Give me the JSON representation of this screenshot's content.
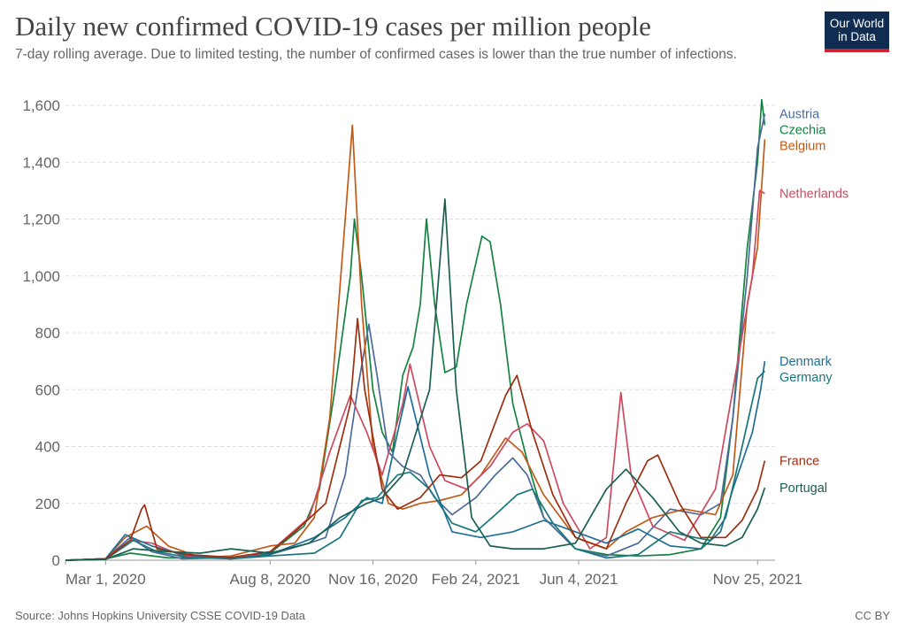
{
  "header": {
    "title": "Daily new confirmed COVID-19 cases per million people",
    "subtitle": "7-day rolling average. Due to limited testing, the number of confirmed cases is lower than the true number of infections."
  },
  "logo": {
    "line1": "Our World",
    "line2": "in Data",
    "bg": "#102c50",
    "accent": "#cf2430"
  },
  "footer": {
    "source": "Source: Johns Hopkins University CSSE COVID-19 Data",
    "license": "CC BY"
  },
  "chart_data": {
    "type": "line",
    "title": "Daily new confirmed COVID-19 cases per million people",
    "ylim": [
      0,
      1600
    ],
    "yticks": [
      0,
      200,
      400,
      600,
      800,
      1000,
      1200,
      1400,
      1600
    ],
    "ytick_labels": [
      "0",
      "200",
      "400",
      "600",
      "800",
      "1,000",
      "1,200",
      "1,400",
      "1,600"
    ],
    "xlim": [
      "2020-01-22",
      "2021-12-12"
    ],
    "xticks": [
      "2020-03-01",
      "2020-08-08",
      "2020-11-16",
      "2021-02-24",
      "2021-06-04",
      "2021-11-25"
    ],
    "xtick_labels": [
      "Mar 1, 2020",
      "Aug 8, 2020",
      "Nov 16, 2020",
      "Feb 24, 2021",
      "Jun 4, 2021",
      "Nov 25, 2021"
    ],
    "grid": "horizontal dashed",
    "legend": "right, at line ends",
    "series": [
      {
        "name": "Czechia",
        "color": "#158340",
        "points": [
          [
            "2020-01-22",
            0
          ],
          [
            "2020-03-01",
            5
          ],
          [
            "2020-03-25",
            25
          ],
          [
            "2020-05-01",
            8
          ],
          [
            "2020-07-01",
            10
          ],
          [
            "2020-08-08",
            25
          ],
          [
            "2020-09-10",
            120
          ],
          [
            "2020-09-25",
            250
          ],
          [
            "2020-10-10",
            600
          ],
          [
            "2020-10-25",
            1000
          ],
          [
            "2020-10-29",
            1200
          ],
          [
            "2020-11-05",
            1000
          ],
          [
            "2020-11-16",
            600
          ],
          [
            "2020-11-25",
            450
          ],
          [
            "2020-12-05",
            380
          ],
          [
            "2020-12-15",
            650
          ],
          [
            "2020-12-25",
            750
          ],
          [
            "2021-01-01",
            900
          ],
          [
            "2021-01-07",
            1200
          ],
          [
            "2021-01-15",
            900
          ],
          [
            "2021-01-25",
            660
          ],
          [
            "2021-02-05",
            680
          ],
          [
            "2021-02-15",
            900
          ],
          [
            "2021-03-02",
            1140
          ],
          [
            "2021-03-10",
            1120
          ],
          [
            "2021-03-20",
            900
          ],
          [
            "2021-04-01",
            550
          ],
          [
            "2021-04-15",
            350
          ],
          [
            "2021-05-01",
            150
          ],
          [
            "2021-06-01",
            40
          ],
          [
            "2021-07-01",
            20
          ],
          [
            "2021-08-01",
            15
          ],
          [
            "2021-09-01",
            20
          ],
          [
            "2021-10-01",
            40
          ],
          [
            "2021-10-20",
            150
          ],
          [
            "2021-11-01",
            500
          ],
          [
            "2021-11-15",
            1100
          ],
          [
            "2021-11-25",
            1400
          ],
          [
            "2021-11-29",
            1620
          ],
          [
            "2021-12-02",
            1530
          ]
        ]
      },
      {
        "name": "Austria",
        "color": "#4c6a9c",
        "points": [
          [
            "2020-01-22",
            0
          ],
          [
            "2020-03-01",
            5
          ],
          [
            "2020-03-25",
            80
          ],
          [
            "2020-04-15",
            30
          ],
          [
            "2020-05-15",
            5
          ],
          [
            "2020-07-01",
            10
          ],
          [
            "2020-08-08",
            20
          ],
          [
            "2020-09-15",
            60
          ],
          [
            "2020-10-01",
            80
          ],
          [
            "2020-10-20",
            300
          ],
          [
            "2020-11-01",
            600
          ],
          [
            "2020-11-12",
            830
          ],
          [
            "2020-11-20",
            650
          ],
          [
            "2020-12-01",
            380
          ],
          [
            "2020-12-15",
            330
          ],
          [
            "2021-01-01",
            300
          ],
          [
            "2021-01-15",
            220
          ],
          [
            "2021-02-01",
            160
          ],
          [
            "2021-02-24",
            220
          ],
          [
            "2021-03-15",
            300
          ],
          [
            "2021-04-01",
            360
          ],
          [
            "2021-04-15",
            300
          ],
          [
            "2021-05-01",
            150
          ],
          [
            "2021-06-01",
            40
          ],
          [
            "2021-07-01",
            15
          ],
          [
            "2021-08-01",
            60
          ],
          [
            "2021-09-01",
            180
          ],
          [
            "2021-10-01",
            160
          ],
          [
            "2021-10-20",
            200
          ],
          [
            "2021-11-01",
            500
          ],
          [
            "2021-11-15",
            1000
          ],
          [
            "2021-11-25",
            1450
          ],
          [
            "2021-12-02",
            1570
          ]
        ]
      },
      {
        "name": "Belgium",
        "color": "#c15a16",
        "points": [
          [
            "2020-01-22",
            0
          ],
          [
            "2020-03-01",
            5
          ],
          [
            "2020-03-20",
            80
          ],
          [
            "2020-04-10",
            120
          ],
          [
            "2020-05-01",
            50
          ],
          [
            "2020-06-01",
            10
          ],
          [
            "2020-07-01",
            15
          ],
          [
            "2020-08-08",
            50
          ],
          [
            "2020-09-01",
            60
          ],
          [
            "2020-09-20",
            150
          ],
          [
            "2020-10-05",
            500
          ],
          [
            "2020-10-20",
            1200
          ],
          [
            "2020-10-27",
            1530
          ],
          [
            "2020-11-05",
            900
          ],
          [
            "2020-11-16",
            400
          ],
          [
            "2020-12-01",
            200
          ],
          [
            "2020-12-15",
            180
          ],
          [
            "2021-01-01",
            200
          ],
          [
            "2021-01-20",
            210
          ],
          [
            "2021-02-10",
            230
          ],
          [
            "2021-03-01",
            300
          ],
          [
            "2021-03-25",
            430
          ],
          [
            "2021-04-10",
            380
          ],
          [
            "2021-05-01",
            230
          ],
          [
            "2021-06-01",
            80
          ],
          [
            "2021-07-01",
            40
          ],
          [
            "2021-07-20",
            100
          ],
          [
            "2021-08-15",
            150
          ],
          [
            "2021-09-15",
            180
          ],
          [
            "2021-10-15",
            160
          ],
          [
            "2021-11-01",
            300
          ],
          [
            "2021-11-15",
            900
          ],
          [
            "2021-11-25",
            1100
          ],
          [
            "2021-12-02",
            1480
          ]
        ]
      },
      {
        "name": "Netherlands",
        "color": "#cd4b61",
        "points": [
          [
            "2020-01-22",
            0
          ],
          [
            "2020-03-01",
            3
          ],
          [
            "2020-03-25",
            70
          ],
          [
            "2020-04-15",
            60
          ],
          [
            "2020-05-15",
            15
          ],
          [
            "2020-07-01",
            5
          ],
          [
            "2020-08-08",
            30
          ],
          [
            "2020-09-15",
            150
          ],
          [
            "2020-10-05",
            380
          ],
          [
            "2020-10-25",
            580
          ],
          [
            "2020-11-10",
            450
          ],
          [
            "2020-11-25",
            300
          ],
          [
            "2020-12-15",
            550
          ],
          [
            "2020-12-22",
            690
          ],
          [
            "2021-01-10",
            400
          ],
          [
            "2021-01-25",
            280
          ],
          [
            "2021-02-15",
            250
          ],
          [
            "2021-03-10",
            330
          ],
          [
            "2021-04-01",
            450
          ],
          [
            "2021-04-15",
            480
          ],
          [
            "2021-05-01",
            420
          ],
          [
            "2021-05-20",
            200
          ],
          [
            "2021-06-15",
            40
          ],
          [
            "2021-07-01",
            80
          ],
          [
            "2021-07-15",
            590
          ],
          [
            "2021-07-25",
            300
          ],
          [
            "2021-08-15",
            120
          ],
          [
            "2021-09-15",
            70
          ],
          [
            "2021-10-15",
            250
          ],
          [
            "2021-11-01",
            600
          ],
          [
            "2021-11-20",
            1000
          ],
          [
            "2021-11-27",
            1300
          ],
          [
            "2021-12-02",
            1290
          ]
        ]
      },
      {
        "name": "Denmark",
        "color": "#1f6e95",
        "points": [
          [
            "2020-01-22",
            0
          ],
          [
            "2020-03-01",
            5
          ],
          [
            "2020-03-20",
            90
          ],
          [
            "2020-04-15",
            50
          ],
          [
            "2020-05-15",
            20
          ],
          [
            "2020-07-01",
            5
          ],
          [
            "2020-08-08",
            20
          ],
          [
            "2020-09-20",
            80
          ],
          [
            "2020-10-20",
            150
          ],
          [
            "2020-11-10",
            220
          ],
          [
            "2020-11-25",
            200
          ],
          [
            "2020-12-10",
            450
          ],
          [
            "2020-12-20",
            610
          ],
          [
            "2021-01-10",
            300
          ],
          [
            "2021-02-01",
            100
          ],
          [
            "2021-03-01",
            80
          ],
          [
            "2021-04-01",
            100
          ],
          [
            "2021-05-01",
            140
          ],
          [
            "2021-06-01",
            100
          ],
          [
            "2021-07-01",
            60
          ],
          [
            "2021-08-01",
            110
          ],
          [
            "2021-09-01",
            50
          ],
          [
            "2021-10-01",
            40
          ],
          [
            "2021-10-20",
            100
          ],
          [
            "2021-11-01",
            250
          ],
          [
            "2021-11-20",
            450
          ],
          [
            "2021-11-28",
            600
          ],
          [
            "2021-12-02",
            700
          ]
        ]
      },
      {
        "name": "Germany",
        "color": "#18777b",
        "points": [
          [
            "2020-01-22",
            0
          ],
          [
            "2020-03-01",
            3
          ],
          [
            "2020-03-28",
            70
          ],
          [
            "2020-04-20",
            30
          ],
          [
            "2020-05-20",
            10
          ],
          [
            "2020-07-01",
            5
          ],
          [
            "2020-08-08",
            15
          ],
          [
            "2020-09-20",
            25
          ],
          [
            "2020-10-15",
            80
          ],
          [
            "2020-11-05",
            210
          ],
          [
            "2020-11-20",
            220
          ],
          [
            "2020-12-10",
            300
          ],
          [
            "2020-12-22",
            310
          ],
          [
            "2021-01-10",
            250
          ],
          [
            "2021-02-01",
            130
          ],
          [
            "2021-02-24",
            100
          ],
          [
            "2021-03-15",
            160
          ],
          [
            "2021-04-05",
            230
          ],
          [
            "2021-04-20",
            250
          ],
          [
            "2021-05-10",
            130
          ],
          [
            "2021-06-01",
            40
          ],
          [
            "2021-07-01",
            8
          ],
          [
            "2021-08-01",
            20
          ],
          [
            "2021-09-01",
            100
          ],
          [
            "2021-09-25",
            80
          ],
          [
            "2021-10-10",
            70
          ],
          [
            "2021-10-25",
            150
          ],
          [
            "2021-11-10",
            400
          ],
          [
            "2021-11-25",
            640
          ],
          [
            "2021-12-02",
            665
          ]
        ]
      },
      {
        "name": "France",
        "color": "#9c2e12",
        "points": [
          [
            "2020-01-22",
            0
          ],
          [
            "2020-03-01",
            5
          ],
          [
            "2020-03-25",
            70
          ],
          [
            "2020-04-05",
            180
          ],
          [
            "2020-04-08",
            195
          ],
          [
            "2020-04-20",
            40
          ],
          [
            "2020-05-20",
            20
          ],
          [
            "2020-07-01",
            10
          ],
          [
            "2020-08-08",
            30
          ],
          [
            "2020-09-01",
            100
          ],
          [
            "2020-10-01",
            200
          ],
          [
            "2020-10-25",
            550
          ],
          [
            "2020-11-01",
            850
          ],
          [
            "2020-11-08",
            600
          ],
          [
            "2020-11-25",
            250
          ],
          [
            "2020-12-10",
            180
          ],
          [
            "2021-01-01",
            220
          ],
          [
            "2021-01-20",
            300
          ],
          [
            "2021-02-10",
            290
          ],
          [
            "2021-03-01",
            350
          ],
          [
            "2021-03-25",
            580
          ],
          [
            "2021-04-05",
            650
          ],
          [
            "2021-04-20",
            450
          ],
          [
            "2021-05-10",
            230
          ],
          [
            "2021-06-01",
            80
          ],
          [
            "2021-07-01",
            40
          ],
          [
            "2021-07-20",
            200
          ],
          [
            "2021-08-10",
            350
          ],
          [
            "2021-08-20",
            370
          ],
          [
            "2021-09-10",
            200
          ],
          [
            "2021-10-01",
            80
          ],
          [
            "2021-10-25",
            80
          ],
          [
            "2021-11-10",
            140
          ],
          [
            "2021-11-25",
            250
          ],
          [
            "2021-12-02",
            350
          ]
        ]
      },
      {
        "name": "Portugal",
        "color": "#1a5f53",
        "points": [
          [
            "2020-01-22",
            0
          ],
          [
            "2020-03-01",
            3
          ],
          [
            "2020-03-28",
            40
          ],
          [
            "2020-05-01",
            30
          ],
          [
            "2020-06-01",
            25
          ],
          [
            "2020-07-01",
            40
          ],
          [
            "2020-08-08",
            25
          ],
          [
            "2020-09-15",
            60
          ],
          [
            "2020-10-15",
            150
          ],
          [
            "2020-11-10",
            200
          ],
          [
            "2020-11-25",
            220
          ],
          [
            "2020-12-15",
            300
          ],
          [
            "2021-01-10",
            600
          ],
          [
            "2021-01-25",
            1270
          ],
          [
            "2021-02-05",
            600
          ],
          [
            "2021-02-20",
            150
          ],
          [
            "2021-03-10",
            50
          ],
          [
            "2021-04-01",
            40
          ],
          [
            "2021-05-01",
            40
          ],
          [
            "2021-06-01",
            60
          ],
          [
            "2021-07-01",
            250
          ],
          [
            "2021-07-20",
            320
          ],
          [
            "2021-08-15",
            220
          ],
          [
            "2021-09-10",
            100
          ],
          [
            "2021-10-01",
            60
          ],
          [
            "2021-10-25",
            50
          ],
          [
            "2021-11-10",
            80
          ],
          [
            "2021-11-25",
            180
          ],
          [
            "2021-12-02",
            255
          ]
        ]
      }
    ]
  }
}
